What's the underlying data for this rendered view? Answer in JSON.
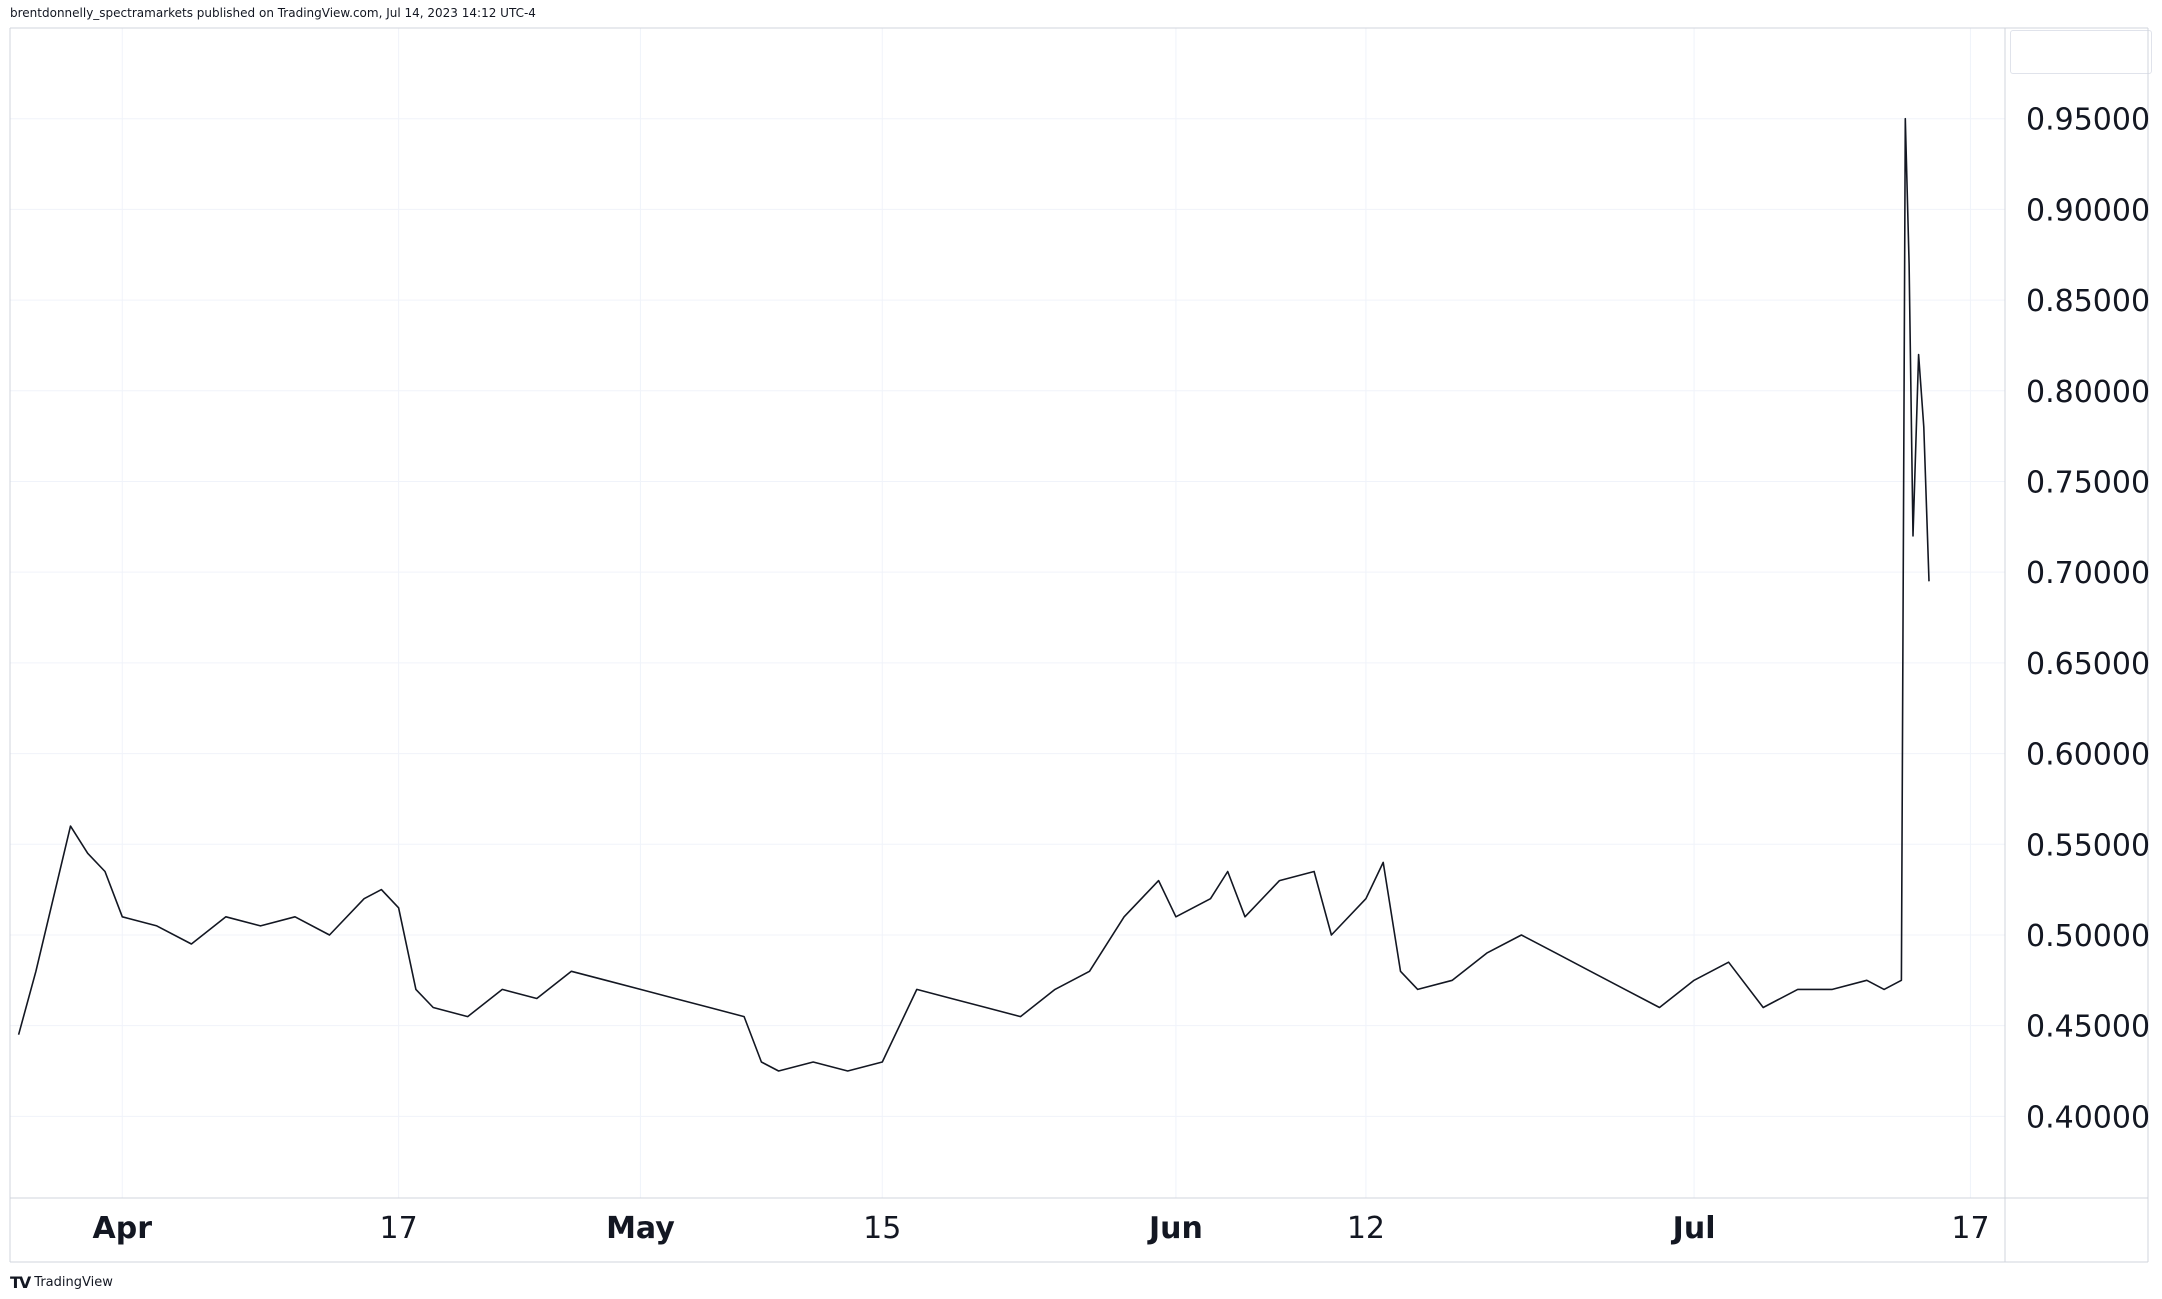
{
  "header": {
    "published_text": "brentdonnelly_spectramarkets published on TradingView.com, Jul 14, 2023 14:12 UTC-4"
  },
  "branding": {
    "logo_icon": "tradingview-logo-icon",
    "logo_text": "TradingView"
  },
  "colors": {
    "line": "#131722",
    "grid": "#f0f3fa",
    "border": "#d1d4dc",
    "background": "#ffffff"
  },
  "chart_data": {
    "type": "line",
    "title": "",
    "xlabel": "",
    "ylabel": "",
    "ylim": [
      0.355,
      1.0
    ],
    "grid": true,
    "y_ticks": [
      "0.95000",
      "0.90000",
      "0.85000",
      "0.80000",
      "0.75000",
      "0.70000",
      "0.65000",
      "0.60000",
      "0.55000",
      "0.50000",
      "0.45000",
      "0.40000"
    ],
    "x_ticks": [
      {
        "label": "Apr",
        "date": "2023-04-01",
        "major": true
      },
      {
        "label": "17",
        "date": "2023-04-17",
        "major": false
      },
      {
        "label": "May",
        "date": "2023-05-01",
        "major": true
      },
      {
        "label": "15",
        "date": "2023-05-15",
        "major": false
      },
      {
        "label": "Jun",
        "date": "2023-06-01",
        "major": true
      },
      {
        "label": "12",
        "date": "2023-06-12",
        "major": false
      },
      {
        "label": "Jul",
        "date": "2023-07-01",
        "major": true
      },
      {
        "label": "17",
        "date": "2023-07-17",
        "major": false
      }
    ],
    "series": [
      {
        "x": [
          "2023-03-26",
          "2023-03-27",
          "2023-03-28",
          "2023-03-29",
          "2023-03-30",
          "2023-03-31",
          "2023-04-01",
          "2023-04-03",
          "2023-04-05",
          "2023-04-07",
          "2023-04-09",
          "2023-04-11",
          "2023-04-13",
          "2023-04-15",
          "2023-04-16",
          "2023-04-17",
          "2023-04-18",
          "2023-04-19",
          "2023-04-21",
          "2023-04-23",
          "2023-04-25",
          "2023-04-27",
          "2023-04-29",
          "2023-05-01",
          "2023-05-03",
          "2023-05-05",
          "2023-05-07",
          "2023-05-08",
          "2023-05-09",
          "2023-05-11",
          "2023-05-13",
          "2023-05-15",
          "2023-05-17",
          "2023-05-19",
          "2023-05-21",
          "2023-05-23",
          "2023-05-25",
          "2023-05-27",
          "2023-05-29",
          "2023-05-31",
          "2023-06-01",
          "2023-06-03",
          "2023-06-04",
          "2023-06-05",
          "2023-06-07",
          "2023-06-09",
          "2023-06-10",
          "2023-06-12",
          "2023-06-13",
          "2023-06-14",
          "2023-06-15",
          "2023-06-17",
          "2023-06-19",
          "2023-06-21",
          "2023-06-23",
          "2023-06-25",
          "2023-06-27",
          "2023-06-29",
          "2023-07-01",
          "2023-07-03",
          "2023-07-05",
          "2023-07-07",
          "2023-07-09",
          "2023-07-11",
          "2023-07-12",
          "2023-07-13",
          "2023-07-13",
          "2023-07-13",
          "2023-07-13",
          "2023-07-14",
          "2023-07-14",
          "2023-07-14"
        ],
        "y": [
          0.445,
          0.48,
          0.52,
          0.56,
          0.545,
          0.535,
          0.51,
          0.505,
          0.495,
          0.51,
          0.505,
          0.51,
          0.5,
          0.52,
          0.525,
          0.515,
          0.47,
          0.46,
          0.455,
          0.47,
          0.465,
          0.48,
          0.475,
          0.47,
          0.465,
          0.46,
          0.455,
          0.43,
          0.425,
          0.43,
          0.425,
          0.43,
          0.47,
          0.465,
          0.46,
          0.455,
          0.47,
          0.48,
          0.51,
          0.53,
          0.51,
          0.52,
          0.535,
          0.51,
          0.53,
          0.535,
          0.5,
          0.52,
          0.54,
          0.48,
          0.47,
          0.475,
          0.49,
          0.5,
          0.49,
          0.48,
          0.47,
          0.46,
          0.475,
          0.485,
          0.46,
          0.47,
          0.47,
          0.475,
          0.47,
          0.475,
          0.95,
          0.87,
          0.72,
          0.82,
          0.78,
          0.695
        ]
      }
    ]
  }
}
